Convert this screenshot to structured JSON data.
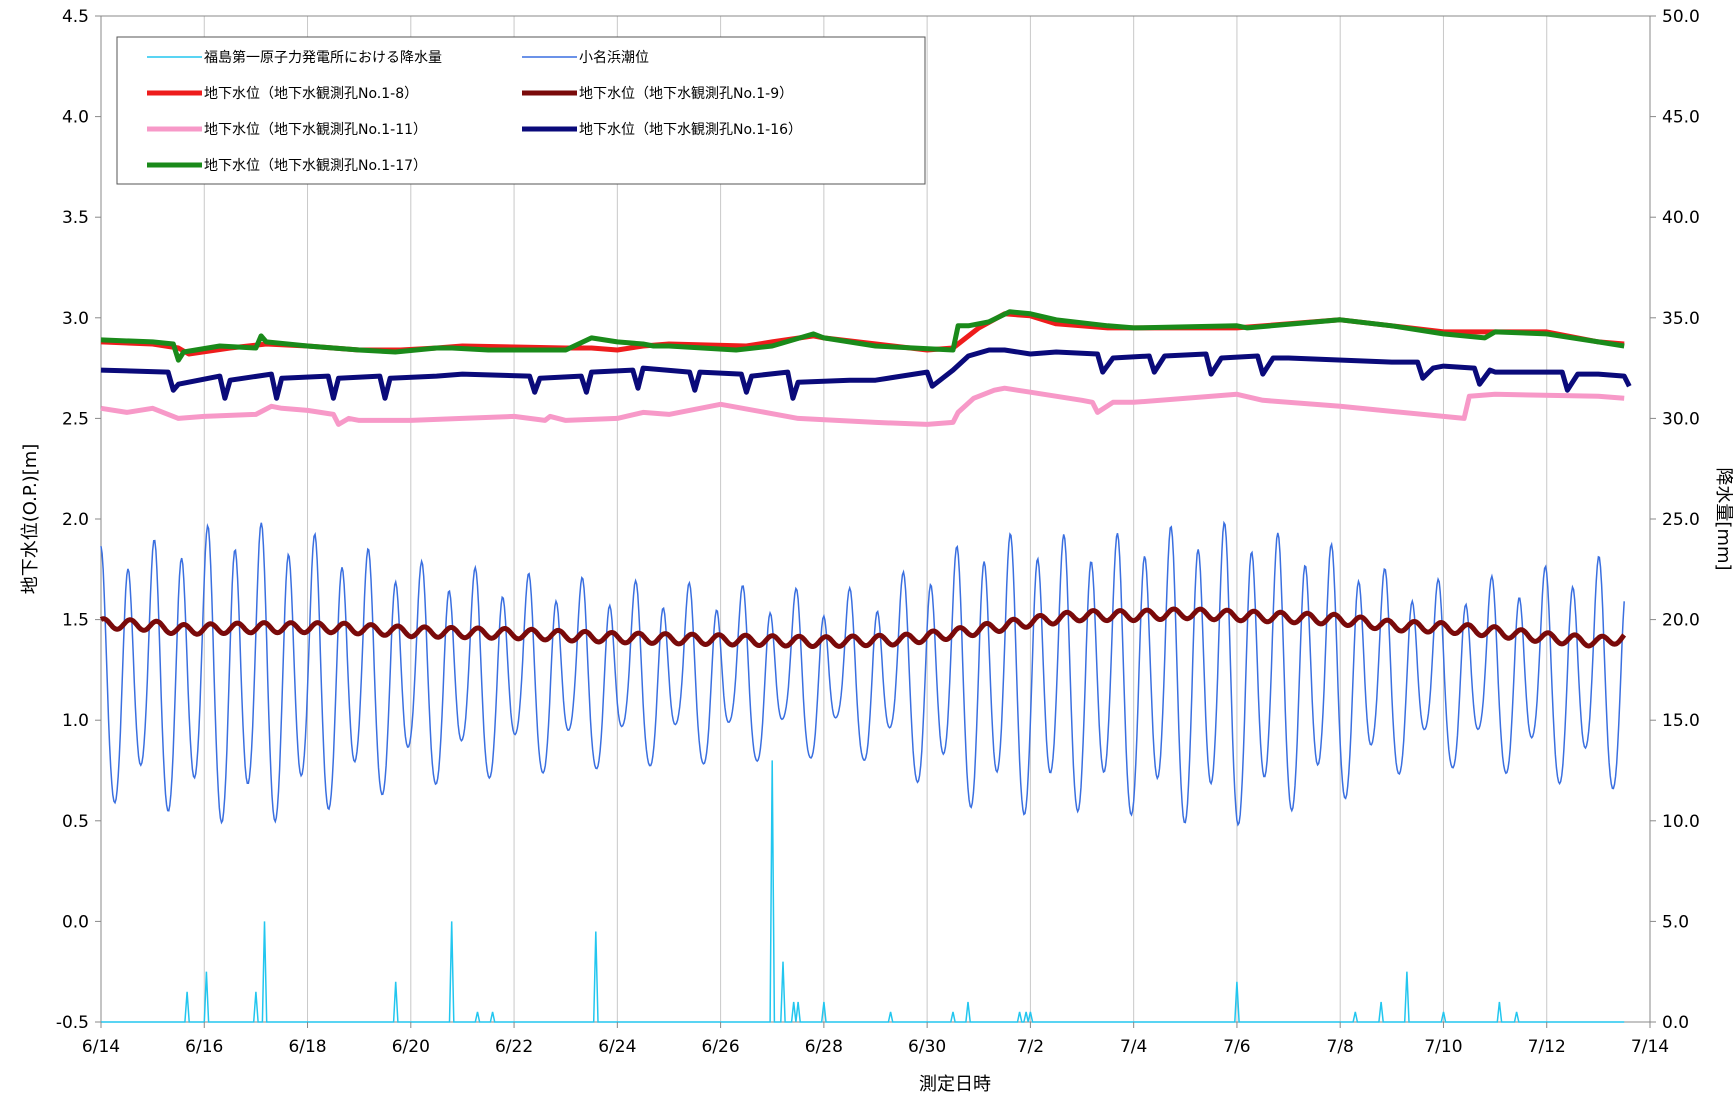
{
  "chart_data": {
    "type": "line",
    "xlabel": "測定日時",
    "ylabel_left": "地下水位(O.P.)[m]",
    "ylabel_right": "降水量[mm]",
    "x_ticks": [
      "6/14",
      "6/16",
      "6/18",
      "6/20",
      "6/22",
      "6/24",
      "6/26",
      "6/28",
      "6/30",
      "7/2",
      "7/4",
      "7/6",
      "7/8",
      "7/10",
      "7/12",
      "7/14"
    ],
    "xlim_days": [
      0,
      30
    ],
    "ylim_left": [
      -0.5,
      4.5
    ],
    "y_ticks_left": [
      "-0.5",
      "0.0",
      "0.5",
      "1.0",
      "1.5",
      "2.0",
      "2.5",
      "3.0",
      "3.5",
      "4.0",
      "4.5"
    ],
    "ylim_right": [
      0,
      50
    ],
    "y_ticks_right": [
      "0.0",
      "5.0",
      "10.0",
      "15.0",
      "20.0",
      "25.0",
      "30.0",
      "35.0",
      "40.0",
      "45.0",
      "50.0"
    ],
    "grid": "vertical",
    "legend_position": "top-left",
    "legend": [
      {
        "name": "福島第一原子力発電所における降水量",
        "color": "#22c6ef",
        "width": 1.5
      },
      {
        "name": "小名浜潮位",
        "color": "#3a6fe0",
        "width": 1.5
      },
      {
        "name": "地下水位（地下水観測孔No.1-8）",
        "color": "#ee1c1c",
        "width": 5
      },
      {
        "name": "地下水位（地下水観測孔No.1-9）",
        "color": "#7a0a0a",
        "width": 5
      },
      {
        "name": "地下水位（地下水観測孔No.1-11）",
        "color": "#f799c8",
        "width": 5
      },
      {
        "name": "地下水位（地下水観測孔No.1-16）",
        "color": "#0a0a7a",
        "width": 5
      },
      {
        "name": "地下水位（地下水観測孔No.1-17）",
        "color": "#1a8a1a",
        "width": 5
      }
    ],
    "series": [
      {
        "name": "地下水位（地下水観測孔No.1-8）",
        "axis": "left",
        "color": "#ee1c1c",
        "x": [
          0,
          1,
          1.5,
          1.7,
          2.5,
          3.2,
          4,
          5,
          5.8,
          6.5,
          7,
          9,
          9.5,
          10,
          10.5,
          11,
          12.5,
          13,
          13.8,
          14,
          16,
          16.5,
          17,
          17.5,
          18,
          18.5,
          19.5,
          22,
          24,
          25,
          26,
          28,
          29,
          29.5
        ],
        "y": [
          2.88,
          2.87,
          2.85,
          2.82,
          2.85,
          2.87,
          2.86,
          2.84,
          2.84,
          2.85,
          2.86,
          2.85,
          2.85,
          2.84,
          2.86,
          2.87,
          2.86,
          2.88,
          2.91,
          2.9,
          2.84,
          2.85,
          2.95,
          3.02,
          3.01,
          2.97,
          2.95,
          2.95,
          2.99,
          2.96,
          2.93,
          2.93,
          2.88,
          2.87
        ]
      },
      {
        "name": "地下水位（地下水観測孔No.1-17）",
        "axis": "left",
        "color": "#1a8a1a",
        "x": [
          0,
          1,
          1.4,
          1.5,
          1.6,
          2.3,
          3,
          3.1,
          3.2,
          4,
          5,
          5.7,
          6.5,
          6.8,
          7.5,
          9,
          9.5,
          10,
          10.5,
          10.7,
          11,
          12.3,
          13,
          13.8,
          14,
          15,
          16.5,
          16.6,
          16.8,
          17.2,
          17.6,
          18,
          18.5,
          19.5,
          20,
          22,
          22.2,
          24,
          25,
          26,
          26.8,
          27,
          28,
          29,
          29.5
        ],
        "y": [
          2.89,
          2.88,
          2.87,
          2.79,
          2.83,
          2.86,
          2.85,
          2.91,
          2.88,
          2.86,
          2.84,
          2.83,
          2.85,
          2.85,
          2.84,
          2.84,
          2.9,
          2.88,
          2.87,
          2.86,
          2.86,
          2.84,
          2.86,
          2.92,
          2.9,
          2.86,
          2.84,
          2.96,
          2.96,
          2.98,
          3.03,
          3.02,
          2.99,
          2.96,
          2.95,
          2.96,
          2.95,
          2.99,
          2.96,
          2.92,
          2.9,
          2.93,
          2.92,
          2.88,
          2.86
        ]
      },
      {
        "name": "地下水位（地下水観測孔No.1-16）",
        "axis": "left",
        "color": "#0a0a7a",
        "x": [
          0,
          1.3,
          1.4,
          1.5,
          2.3,
          2.4,
          2.5,
          3.3,
          3.4,
          3.5,
          4.4,
          4.5,
          4.6,
          5.4,
          5.5,
          5.6,
          6.5,
          7,
          8.3,
          8.4,
          8.5,
          9.3,
          9.4,
          9.5,
          10.3,
          10.4,
          10.5,
          11.4,
          11.5,
          11.6,
          12.4,
          12.5,
          12.6,
          13.3,
          13.4,
          13.5,
          14.5,
          15,
          16,
          16.1,
          16.3,
          16.5,
          16.8,
          17.2,
          17.5,
          18,
          18.5,
          19.3,
          19.4,
          19.6,
          20.3,
          20.4,
          20.6,
          21.4,
          21.5,
          21.7,
          22.4,
          22.5,
          22.7,
          23,
          25,
          25.5,
          25.6,
          25.8,
          26,
          26.6,
          26.7,
          26.9,
          27,
          28,
          28.3,
          28.4,
          28.6,
          29,
          29.5,
          29.6
        ],
        "y": [
          2.74,
          2.73,
          2.64,
          2.67,
          2.71,
          2.6,
          2.69,
          2.72,
          2.6,
          2.7,
          2.71,
          2.6,
          2.7,
          2.71,
          2.6,
          2.7,
          2.71,
          2.72,
          2.71,
          2.63,
          2.7,
          2.71,
          2.63,
          2.73,
          2.74,
          2.65,
          2.75,
          2.73,
          2.64,
          2.73,
          2.72,
          2.63,
          2.71,
          2.73,
          2.6,
          2.68,
          2.69,
          2.69,
          2.73,
          2.66,
          2.7,
          2.74,
          2.81,
          2.84,
          2.84,
          2.82,
          2.83,
          2.82,
          2.73,
          2.8,
          2.81,
          2.73,
          2.81,
          2.82,
          2.72,
          2.8,
          2.81,
          2.72,
          2.8,
          2.8,
          2.78,
          2.78,
          2.7,
          2.75,
          2.76,
          2.75,
          2.67,
          2.74,
          2.73,
          2.73,
          2.73,
          2.64,
          2.72,
          2.72,
          2.71,
          2.66
        ]
      },
      {
        "name": "地下水位（地下水観測孔No.1-11）",
        "axis": "left",
        "color": "#f799c8",
        "x": [
          0,
          0.5,
          1,
          1.5,
          2,
          3,
          3.3,
          3.5,
          4,
          4.5,
          4.6,
          4.8,
          5,
          6,
          7,
          8,
          8.6,
          8.7,
          9,
          10,
          10.5,
          11,
          12,
          13.5,
          15,
          16,
          16.5,
          16.6,
          16.9,
          17.3,
          17.5,
          18,
          19,
          19.2,
          19.3,
          19.6,
          20,
          22,
          22.5,
          24,
          26,
          26.4,
          26.5,
          27,
          29,
          29.5
        ],
        "y": [
          2.55,
          2.53,
          2.55,
          2.5,
          2.51,
          2.52,
          2.56,
          2.55,
          2.54,
          2.52,
          2.47,
          2.5,
          2.49,
          2.49,
          2.5,
          2.51,
          2.49,
          2.51,
          2.49,
          2.5,
          2.53,
          2.52,
          2.57,
          2.5,
          2.48,
          2.47,
          2.48,
          2.53,
          2.6,
          2.64,
          2.65,
          2.63,
          2.59,
          2.58,
          2.53,
          2.58,
          2.58,
          2.62,
          2.59,
          2.56,
          2.51,
          2.5,
          2.61,
          2.62,
          2.61,
          2.6
        ]
      },
      {
        "name": "地下水位（地下水観測孔No.1-9）",
        "axis": "left",
        "color": "#7a0a0a",
        "trend_x": [
          0,
          1,
          1.5,
          3,
          4.5,
          6,
          8,
          10,
          12,
          14,
          15.5,
          16.5,
          18,
          19,
          20,
          21,
          22,
          23,
          24,
          25,
          26,
          27,
          28,
          29,
          29.5
        ],
        "trend_y": [
          1.48,
          1.47,
          1.45,
          1.46,
          1.46,
          1.44,
          1.43,
          1.41,
          1.4,
          1.39,
          1.4,
          1.43,
          1.49,
          1.52,
          1.52,
          1.53,
          1.52,
          1.51,
          1.5,
          1.47,
          1.46,
          1.44,
          1.41,
          1.39,
          1.41
        ],
        "amplitude": 0.025,
        "cycles_per_day": 1.93
      },
      {
        "name": "小名浜潮位",
        "axis": "left",
        "color": "#3a6fe0",
        "description": "semi-diurnal tide",
        "range": [
          0.45,
          1.91
        ],
        "mean": 1.2,
        "cycles_per_day": 1.93,
        "last_value": 1.11,
        "amplitude_envelope_x": [
          0,
          1,
          2,
          3,
          4,
          5,
          6,
          8,
          10,
          12,
          14,
          15,
          16,
          17,
          18,
          19,
          20,
          21,
          22,
          23,
          24,
          25,
          26,
          27,
          28,
          29,
          29.5
        ],
        "amplitude_envelope_y": [
          0.55,
          0.58,
          0.65,
          0.67,
          0.62,
          0.55,
          0.48,
          0.42,
          0.38,
          0.36,
          0.33,
          0.35,
          0.48,
          0.6,
          0.62,
          0.6,
          0.62,
          0.66,
          0.67,
          0.6,
          0.55,
          0.42,
          0.38,
          0.4,
          0.45,
          0.5,
          0.48
        ]
      },
      {
        "name": "福島第一原子力発電所における降水量",
        "axis": "right",
        "color": "#22c6ef",
        "events": [
          [
            1.65,
            1.5
          ],
          [
            2.05,
            2.5
          ],
          [
            3.0,
            1.5
          ],
          [
            3.15,
            5.0
          ],
          [
            5.7,
            2.0
          ],
          [
            6.8,
            5.0
          ],
          [
            7.3,
            0.5
          ],
          [
            7.6,
            0.5
          ],
          [
            9.6,
            4.5
          ],
          [
            13.0,
            13.0
          ],
          [
            13.2,
            3.0
          ],
          [
            13.4,
            1.0
          ],
          [
            13.5,
            1.0
          ],
          [
            14.0,
            1.0
          ],
          [
            15.3,
            0.5
          ],
          [
            16.5,
            0.5
          ],
          [
            16.8,
            1.0
          ],
          [
            17.8,
            0.5
          ],
          [
            17.9,
            0.5
          ],
          [
            18.0,
            0.5
          ],
          [
            22.0,
            2.0
          ],
          [
            24.3,
            0.5
          ],
          [
            24.8,
            1.0
          ],
          [
            25.3,
            2.5
          ],
          [
            26.0,
            0.5
          ],
          [
            27.1,
            1.0
          ],
          [
            27.4,
            0.5
          ]
        ],
        "baseline": 0.0
      }
    ]
  }
}
